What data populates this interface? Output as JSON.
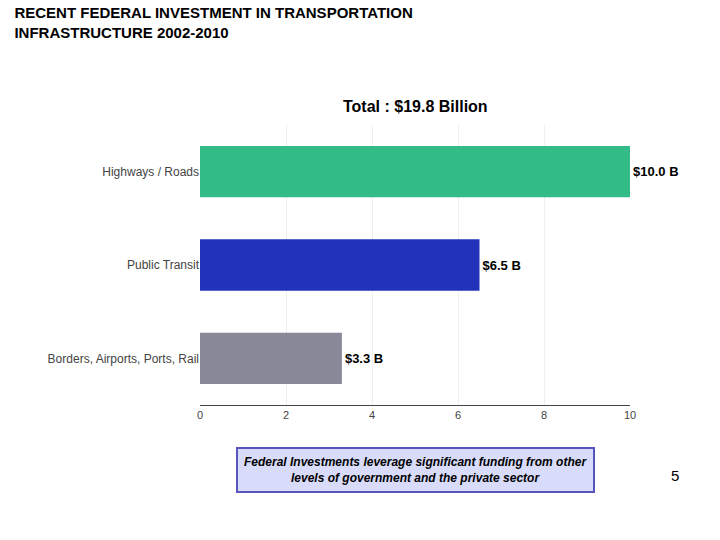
{
  "chart_data": {
    "type": "bar",
    "orientation": "horizontal",
    "title": [
      "RECENT FEDERAL INVESTMENT IN TRANSPORTATION",
      "INFRASTRUCTURE 2002-2010"
    ],
    "subtitle": "Total : $19.8 Billion",
    "categories": [
      "Borders, Airports, Ports, Rail",
      "Public Transit",
      "Highways / Roads"
    ],
    "values": [
      3.3,
      6.5,
      10.0
    ],
    "value_labels": [
      "$3.3 B",
      "$6.5 B",
      "$10.0 B"
    ],
    "data_labels": true,
    "colors": [
      "#888899",
      "#2233BB",
      "#33BB88"
    ],
    "xlim": [
      0,
      10
    ],
    "xticks": [
      0,
      2,
      4,
      6,
      8,
      10
    ],
    "grid": true,
    "annotations": [
      "Federal Investments leverage significant funding from other",
      "levels of government and the private sector",
      "5"
    ]
  }
}
